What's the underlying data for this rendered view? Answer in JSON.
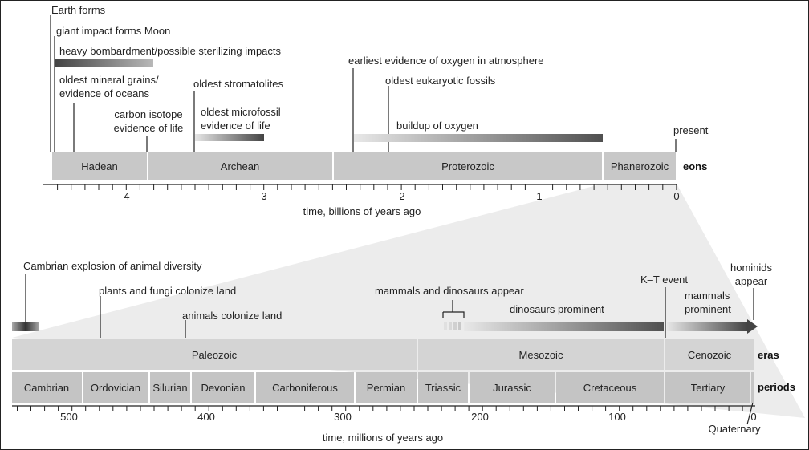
{
  "eons_axis": {
    "caption": "time, billions of years ago",
    "side_label": "eons",
    "ticks": [
      "4",
      "3",
      "2",
      "1",
      "0"
    ],
    "eons": [
      {
        "name": "Hadean",
        "start": 4.6,
        "end": 3.9
      },
      {
        "name": "Archean",
        "start": 3.9,
        "end": 2.5
      },
      {
        "name": "Proterozoic",
        "start": 2.5,
        "end": 0.54
      },
      {
        "name": "Phanerozoic",
        "start": 0.54,
        "end": 0
      }
    ],
    "events": [
      {
        "id": "earth-forms",
        "text": "Earth forms",
        "at": 4.55
      },
      {
        "id": "moon",
        "text": "giant impact forms Moon",
        "at": 4.5
      },
      {
        "id": "bombardment",
        "text": "heavy bombardment/possible sterilizing impacts",
        "from": 4.5,
        "to": 3.8
      },
      {
        "id": "mineral-grains",
        "lines": [
          "oldest mineral grains/",
          "evidence of oceans"
        ],
        "at": 4.4
      },
      {
        "id": "carbon-isotope",
        "lines": [
          "carbon isotope",
          "evidence of life"
        ],
        "at": 3.85
      },
      {
        "id": "stromatolites",
        "text": "oldest stromatolites",
        "at": 3.5
      },
      {
        "id": "microfossil",
        "lines": [
          "oldest microfossil",
          "evidence of life"
        ],
        "from": 3.5,
        "to": 3.0
      },
      {
        "id": "oxygen-atmosphere",
        "text": "earliest evidence of oxygen in atmosphere",
        "at": 2.35
      },
      {
        "id": "eukaryotic",
        "text": "oldest eukaryotic fossils",
        "at": 2.1
      },
      {
        "id": "oxygen-buildup",
        "text": "buildup of oxygen",
        "from": 2.35,
        "to": 0.55
      },
      {
        "id": "present",
        "text": "present",
        "at": 0
      }
    ]
  },
  "eras_axis": {
    "caption": "time, millions of years ago",
    "eras_label": "eras",
    "periods_label": "periods",
    "ticks": [
      "500",
      "400",
      "300",
      "200",
      "100",
      "0"
    ],
    "eras": [
      {
        "name": "Paleozoic",
        "start": 542,
        "end": 251
      },
      {
        "name": "Mesozoic",
        "start": 251,
        "end": 65
      },
      {
        "name": "Cenozoic",
        "start": 65,
        "end": 0
      }
    ],
    "periods": [
      {
        "name": "Cambrian",
        "start": 542,
        "end": 488
      },
      {
        "name": "Ordovician",
        "start": 488,
        "end": 444
      },
      {
        "name": "Silurian",
        "start": 444,
        "end": 416
      },
      {
        "name": "Devonian",
        "start": 416,
        "end": 359
      },
      {
        "name": "Carboniferous",
        "start": 359,
        "end": 299
      },
      {
        "name": "Permian",
        "start": 299,
        "end": 251
      },
      {
        "name": "Triassic",
        "start": 251,
        "end": 200
      },
      {
        "name": "Jurassic",
        "start": 200,
        "end": 146
      },
      {
        "name": "Cretaceous",
        "start": 146,
        "end": 65
      },
      {
        "name": "Tertiary",
        "start": 65,
        "end": 2
      }
    ],
    "quaternary": "Quaternary",
    "events": [
      {
        "id": "cambrian-explosion",
        "text": "Cambrian explosion of animal diversity",
        "at": 540
      },
      {
        "id": "plants-fungi",
        "text": "plants and fungi colonize land",
        "at": 475
      },
      {
        "id": "animals-land",
        "text": "animals colonize land",
        "at": 410
      },
      {
        "id": "mammals-dinos",
        "text": "mammals and dinosaurs appear",
        "from": 225,
        "to": 210
      },
      {
        "id": "dinos-prominent",
        "text": "dinosaurs prominent",
        "from": 210,
        "to": 65
      },
      {
        "id": "kt-event",
        "text": "K–T event",
        "at": 65
      },
      {
        "id": "mammals-prominent",
        "lines": [
          "mammals",
          "prominent"
        ],
        "from": 65,
        "to": 0
      },
      {
        "id": "hominids",
        "lines": [
          "hominids",
          "appear"
        ],
        "at": 2
      }
    ]
  },
  "colors": {
    "bar_fill": "#c8c8c8",
    "bar_dark": "#555555",
    "gradient_light": "#e6e6e6",
    "border": "#222222"
  }
}
